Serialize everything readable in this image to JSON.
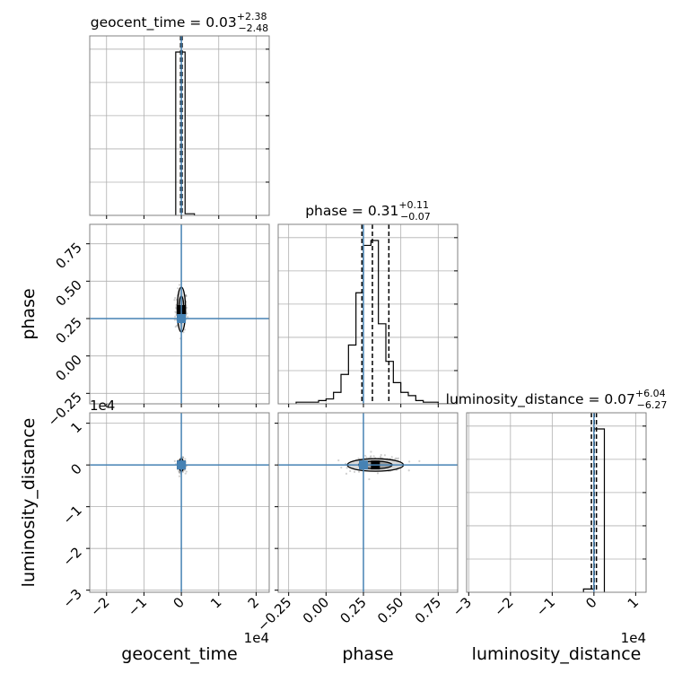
{
  "chart_data": {
    "type": "corner",
    "parameters": [
      "geocent_time",
      "phase",
      "luminosity_distance"
    ],
    "axis_labels": [
      "geocent_time",
      "phase",
      "luminosity_distance"
    ],
    "offset_labels": {
      "geocent_time": "1e4",
      "luminosity_distance": "1e4"
    },
    "truth_color": "#4682b4",
    "truths": {
      "geocent_time": 0.0,
      "phase": 0.25,
      "luminosity_distance": 0.0
    },
    "ranges": {
      "geocent_time": [
        -2.45,
        2.35
      ],
      "phase": [
        -0.32,
        0.88
      ],
      "luminosity_distance": [
        -3.05,
        1.25
      ]
    },
    "ticks": {
      "geocent_time": {
        "values": [
          -2,
          -1,
          0,
          1,
          2
        ],
        "labels": [
          "−2",
          "−1",
          "0",
          "1",
          "2"
        ]
      },
      "phase": {
        "values": [
          -0.25,
          0.0,
          0.25,
          0.5,
          0.75
        ],
        "labels": [
          "−0.25",
          "0.00",
          "0.25",
          "0.50",
          "0.75"
        ]
      },
      "luminosity_distance": {
        "values": [
          -3,
          -2,
          -1,
          0,
          1
        ],
        "labels": [
          "−3",
          "−2",
          "−1",
          "0",
          "1"
        ]
      }
    },
    "titles": [
      {
        "param": "geocent_time",
        "prefix": "geocent_time = ",
        "value": "0.03",
        "plus": "+2.38",
        "minus": "−2.48"
      },
      {
        "param": "phase",
        "prefix": "phase = ",
        "value": "0.31",
        "plus": "+0.11",
        "minus": "−0.07"
      },
      {
        "param": "luminosity_distance",
        "prefix": "luminosity_distance = ",
        "value": "0.07",
        "plus": "+6.04",
        "minus": "−6.27"
      }
    ],
    "histograms": {
      "geocent_time": {
        "bin_edges": [
          -0.15,
          0.1,
          0.35
        ],
        "counts": [
          1.0,
          0.01
        ],
        "quantiles": [
          -0.02,
          0.003,
          0.02
        ]
      },
      "phase": {
        "bin_edges": [
          -0.2,
          -0.15,
          -0.1,
          -0.05,
          0.0,
          0.05,
          0.1,
          0.15,
          0.2,
          0.25,
          0.3,
          0.35,
          0.4,
          0.45,
          0.5,
          0.55,
          0.6,
          0.65,
          0.7,
          0.75,
          0.8,
          0.85
        ],
        "counts": [
          0.01,
          0.01,
          0.01,
          0.02,
          0.03,
          0.07,
          0.18,
          0.36,
          0.68,
          0.97,
          1.0,
          0.49,
          0.26,
          0.13,
          0.07,
          0.05,
          0.02,
          0.01,
          0.01,
          0.0,
          0.0
        ],
        "quantiles": [
          0.24,
          0.31,
          0.42
        ]
      },
      "luminosity_distance": {
        "bin_edges": [
          -0.25,
          0.0,
          0.25
        ],
        "counts": [
          0.02,
          1.0
        ],
        "quantiles": [
          -0.06,
          0.007,
          0.06
        ]
      }
    },
    "scatter": {
      "phase_vs_geocent_time": {
        "x_center": 0.0,
        "x_spread": 0.08,
        "y_center": 0.3,
        "y_spread": 0.07,
        "n": 170
      },
      "luminosity_distance_vs_geocent_time": {
        "x_center": 0.0,
        "x_spread": 0.05,
        "y_center": 0.0,
        "y_spread": 0.08,
        "n": 150
      },
      "luminosity_distance_vs_phase": {
        "x_center": 0.34,
        "x_spread": 0.09,
        "y_center": 0.02,
        "y_spread": 0.09,
        "n": 220
      }
    },
    "contours": {
      "phase_vs_geocent_time": {
        "x": 0.0,
        "y": 0.31,
        "rx": 0.09,
        "ry": 0.12
      },
      "luminosity_distance_vs_geocent_time": {
        "x": 0.0,
        "y": 0.0,
        "rx": 0.05,
        "ry": 0.12
      },
      "luminosity_distance_vs_phase": {
        "x": 0.33,
        "y": 0.0,
        "rx": 0.15,
        "ry": 0.12
      }
    },
    "grid": true
  }
}
